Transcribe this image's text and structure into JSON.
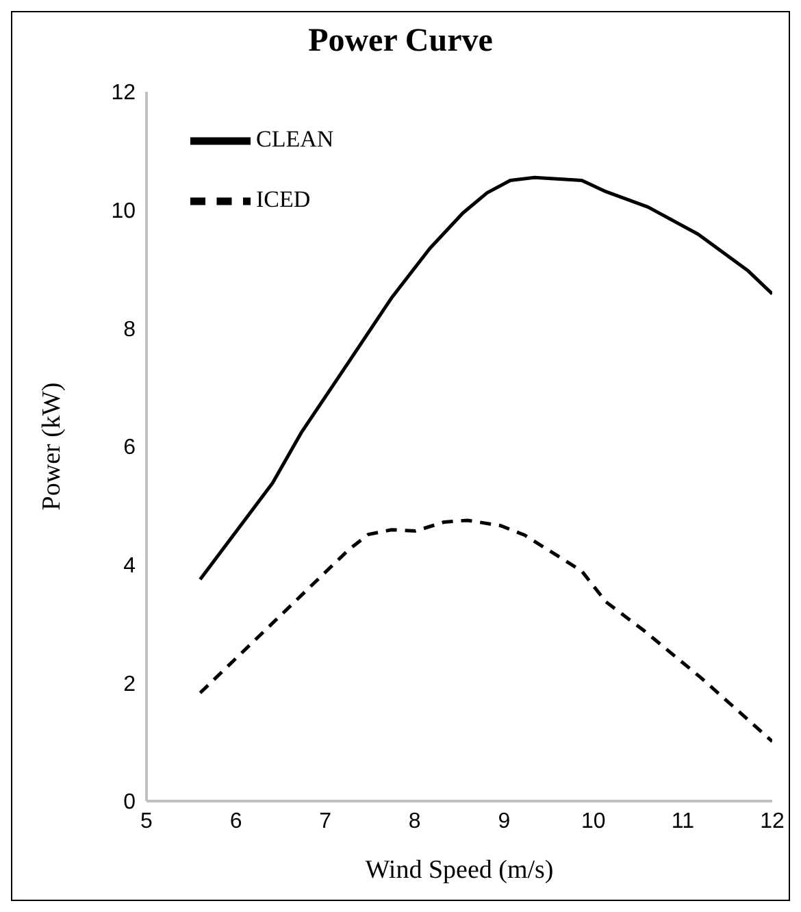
{
  "chart_data": {
    "type": "line",
    "title": "Power Curve",
    "xlabel": "Wind Speed (m/s)",
    "ylabel": "Power (kW)",
    "xlim": [
      5,
      12
    ],
    "xticks": [
      5,
      6,
      7,
      8,
      9,
      10,
      11,
      12
    ],
    "ylim": [
      0,
      12
    ],
    "yticks": [
      0,
      2,
      4,
      6,
      8,
      10,
      12
    ],
    "legend": "top left",
    "marker": "none",
    "series": [
      {
        "name": "CLEAN",
        "color": "#000000",
        "line_style": "solid",
        "x": [
          5.6,
          6.41,
          6.73,
          7.21,
          7.74,
          8.17,
          8.54,
          8.81,
          9.07,
          9.34,
          9.87,
          10.14,
          10.61,
          11.17,
          11.73,
          12
        ],
        "values": [
          3.75,
          5.38,
          6.23,
          7.31,
          8.51,
          9.35,
          9.95,
          10.29,
          10.5,
          10.55,
          10.5,
          10.31,
          10.05,
          9.59,
          8.97,
          8.58
        ]
      },
      {
        "name": "ICED",
        "color": "#000000",
        "line_style": "dashed",
        "x": [
          5.6,
          6.41,
          7.26,
          7.48,
          7.74,
          8.01,
          8.33,
          8.59,
          8.96,
          9.23,
          9.87,
          10.14,
          10.56,
          11.2,
          12
        ],
        "values": [
          1.83,
          3.01,
          4.25,
          4.51,
          4.59,
          4.57,
          4.72,
          4.75,
          4.66,
          4.5,
          3.89,
          3.37,
          2.89,
          2.09,
          1.01
        ]
      }
    ]
  }
}
